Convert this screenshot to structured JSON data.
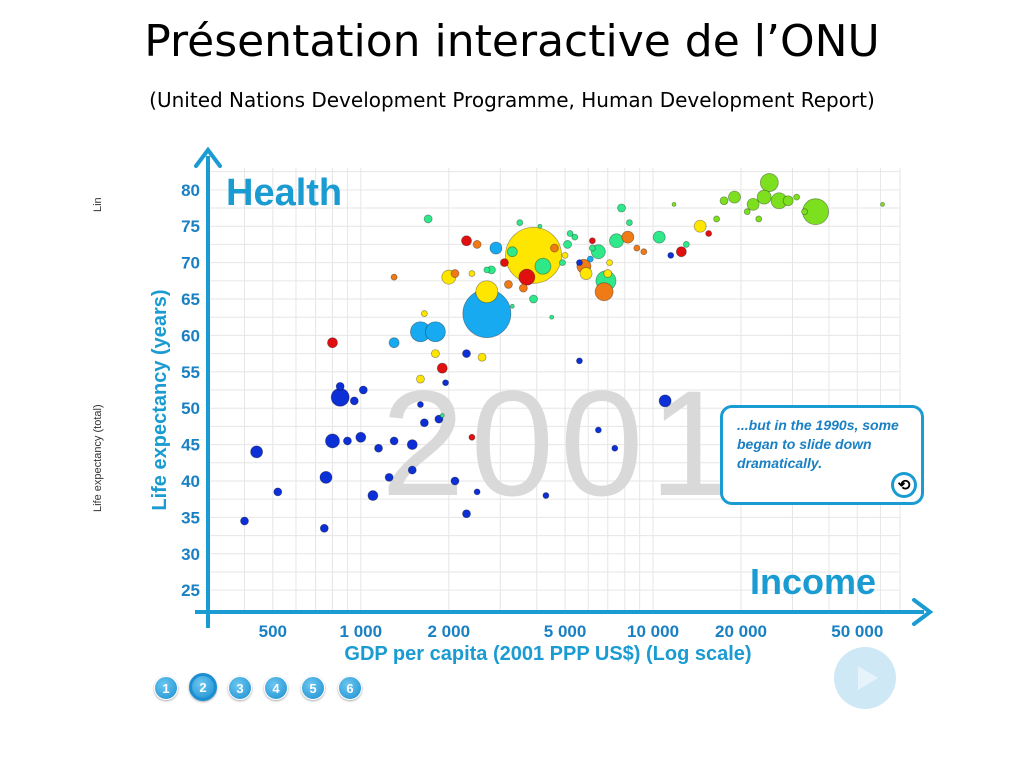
{
  "slide": {
    "title": "Présentation interactive de l’ONU",
    "subtitle": "(United Nations Development Programme, Human Development Report)"
  },
  "side_labels": {
    "scale": "Lin",
    "indicator": "Life expectancy (total)"
  },
  "callout": {
    "text": "...but in the 1990s, some began to slide down dramatically.",
    "replay_icon": "replay-icon"
  },
  "steps": [
    "1",
    "2",
    "3",
    "4",
    "5",
    "6"
  ],
  "active_step": "2",
  "play_icon": "play-icon",
  "colors": {
    "axis": "#1a9bd1",
    "tick": "#1a80c4",
    "grid": "#e6e6e6",
    "year_watermark": "#d9d9d9"
  },
  "chart_data": {
    "type": "scatter",
    "title": "Health",
    "corner_label": "Income",
    "year_label": "2001",
    "xlabel": "GDP per capita (2001 PPP US$) (Log scale)",
    "ylabel": "Life expectancy (years)",
    "x_scale": "log",
    "xlim": [
      300,
      70000
    ],
    "ylim": [
      22,
      83
    ],
    "x_ticks": [
      500,
      1000,
      2000,
      5000,
      10000,
      20000,
      50000
    ],
    "x_tick_labels": [
      "500",
      "1 000",
      "2 000",
      "5 000",
      "10 000",
      "20 000",
      "50 000"
    ],
    "y_ticks": [
      25,
      30,
      35,
      40,
      45,
      50,
      55,
      60,
      65,
      70,
      75,
      80
    ],
    "grid": true,
    "legend": "none",
    "points": [
      {
        "x": 3900,
        "y": 71,
        "s": 28,
        "c": "#ffe600"
      },
      {
        "x": 2700,
        "y": 63,
        "s": 24,
        "c": "#18aaf0"
      },
      {
        "x": 36000,
        "y": 77,
        "s": 13,
        "c": "#7ce01f"
      },
      {
        "x": 2700,
        "y": 66,
        "s": 11,
        "c": "#ffe600"
      },
      {
        "x": 1600,
        "y": 60.5,
        "s": 10,
        "c": "#18aaf0"
      },
      {
        "x": 1800,
        "y": 60.5,
        "s": 10,
        "c": "#18aaf0"
      },
      {
        "x": 850,
        "y": 51.5,
        "s": 9,
        "c": "#0d2fd6"
      },
      {
        "x": 6900,
        "y": 67.5,
        "s": 10,
        "c": "#2ee88a"
      },
      {
        "x": 6800,
        "y": 66,
        "s": 9,
        "c": "#f07a16"
      },
      {
        "x": 25000,
        "y": 81,
        "s": 9,
        "c": "#7ce01f"
      },
      {
        "x": 24000,
        "y": 79,
        "s": 7,
        "c": "#7ce01f"
      },
      {
        "x": 27000,
        "y": 78.5,
        "s": 8,
        "c": "#7ce01f"
      },
      {
        "x": 22000,
        "y": 78,
        "s": 6,
        "c": "#7ce01f"
      },
      {
        "x": 29000,
        "y": 78.5,
        "s": 5,
        "c": "#7ce01f"
      },
      {
        "x": 19000,
        "y": 79,
        "s": 6,
        "c": "#7ce01f"
      },
      {
        "x": 3700,
        "y": 68,
        "s": 8,
        "c": "#e01010"
      },
      {
        "x": 4200,
        "y": 69.5,
        "s": 8,
        "c": "#2ee88a"
      },
      {
        "x": 5800,
        "y": 69.5,
        "s": 7,
        "c": "#f07a16"
      },
      {
        "x": 5900,
        "y": 68.5,
        "s": 6,
        "c": "#ffe600"
      },
      {
        "x": 6500,
        "y": 71.5,
        "s": 7,
        "c": "#2ee88a"
      },
      {
        "x": 7500,
        "y": 73,
        "s": 7,
        "c": "#2ee88a"
      },
      {
        "x": 8200,
        "y": 73.5,
        "s": 6,
        "c": "#f07a16"
      },
      {
        "x": 10500,
        "y": 73.5,
        "s": 6,
        "c": "#2ee88a"
      },
      {
        "x": 12500,
        "y": 71.5,
        "s": 5,
        "c": "#e01010"
      },
      {
        "x": 14500,
        "y": 75,
        "s": 6,
        "c": "#ffe600"
      },
      {
        "x": 2000,
        "y": 68,
        "s": 7,
        "c": "#ffe600"
      },
      {
        "x": 760,
        "y": 40.5,
        "s": 6,
        "c": "#0d2fd6"
      },
      {
        "x": 440,
        "y": 44,
        "s": 6,
        "c": "#0d2fd6"
      },
      {
        "x": 800,
        "y": 45.5,
        "s": 7,
        "c": "#0d2fd6"
      },
      {
        "x": 1000,
        "y": 46,
        "s": 5,
        "c": "#0d2fd6"
      },
      {
        "x": 11000,
        "y": 51,
        "s": 6,
        "c": "#0d2fd6"
      },
      {
        "x": 2100,
        "y": 40,
        "s": 4,
        "c": "#0d2fd6"
      },
      {
        "x": 1500,
        "y": 45,
        "s": 5,
        "c": "#0d2fd6"
      },
      {
        "x": 1100,
        "y": 38,
        "s": 5,
        "c": "#0d2fd6"
      },
      {
        "x": 520,
        "y": 38.5,
        "s": 4,
        "c": "#0d2fd6"
      },
      {
        "x": 400,
        "y": 34.5,
        "s": 4,
        "c": "#0d2fd6"
      },
      {
        "x": 750,
        "y": 33.5,
        "s": 4,
        "c": "#0d2fd6"
      },
      {
        "x": 2300,
        "y": 35.5,
        "s": 4,
        "c": "#0d2fd6"
      },
      {
        "x": 1500,
        "y": 41.5,
        "s": 4,
        "c": "#0d2fd6"
      },
      {
        "x": 900,
        "y": 45.5,
        "s": 4,
        "c": "#0d2fd6"
      },
      {
        "x": 1300,
        "y": 45.5,
        "s": 4,
        "c": "#0d2fd6"
      },
      {
        "x": 1150,
        "y": 44.5,
        "s": 4,
        "c": "#0d2fd6"
      },
      {
        "x": 1650,
        "y": 48,
        "s": 4,
        "c": "#0d2fd6"
      },
      {
        "x": 950,
        "y": 51,
        "s": 4,
        "c": "#0d2fd6"
      },
      {
        "x": 1020,
        "y": 52.5,
        "s": 4,
        "c": "#0d2fd6"
      },
      {
        "x": 850,
        "y": 53,
        "s": 4,
        "c": "#0d2fd6"
      },
      {
        "x": 2300,
        "y": 57.5,
        "s": 4,
        "c": "#0d2fd6"
      },
      {
        "x": 1250,
        "y": 40.5,
        "s": 4,
        "c": "#0d2fd6"
      },
      {
        "x": 1850,
        "y": 48.5,
        "s": 4,
        "c": "#0d2fd6"
      },
      {
        "x": 1950,
        "y": 53.5,
        "s": 3,
        "c": "#0d2fd6"
      },
      {
        "x": 1600,
        "y": 50.5,
        "s": 3,
        "c": "#0d2fd6"
      },
      {
        "x": 2500,
        "y": 38.5,
        "s": 3,
        "c": "#0d2fd6"
      },
      {
        "x": 5600,
        "y": 56.5,
        "s": 3,
        "c": "#0d2fd6"
      },
      {
        "x": 6500,
        "y": 47,
        "s": 3,
        "c": "#0d2fd6"
      },
      {
        "x": 7400,
        "y": 44.5,
        "s": 3,
        "c": "#0d2fd6"
      },
      {
        "x": 4300,
        "y": 38,
        "s": 3,
        "c": "#0d2fd6"
      },
      {
        "x": 800,
        "y": 59,
        "s": 5,
        "c": "#e01010"
      },
      {
        "x": 1900,
        "y": 55.5,
        "s": 5,
        "c": "#e01010"
      },
      {
        "x": 2400,
        "y": 46,
        "s": 3,
        "c": "#e01010"
      },
      {
        "x": 1800,
        "y": 57.5,
        "s": 4,
        "c": "#ffe600"
      },
      {
        "x": 1300,
        "y": 59,
        "s": 5,
        "c": "#18aaf0"
      },
      {
        "x": 1600,
        "y": 54,
        "s": 4,
        "c": "#ffe600"
      },
      {
        "x": 1650,
        "y": 63,
        "s": 3,
        "c": "#ffe600"
      },
      {
        "x": 2600,
        "y": 57,
        "s": 4,
        "c": "#ffe600"
      },
      {
        "x": 1700,
        "y": 76,
        "s": 4,
        "c": "#2ee88a"
      },
      {
        "x": 2300,
        "y": 73,
        "s": 5,
        "c": "#e01010"
      },
      {
        "x": 2500,
        "y": 72.5,
        "s": 4,
        "c": "#f07a16"
      },
      {
        "x": 2900,
        "y": 72,
        "s": 6,
        "c": "#18aaf0"
      },
      {
        "x": 3300,
        "y": 71.5,
        "s": 5,
        "c": "#2ee88a"
      },
      {
        "x": 3600,
        "y": 66.5,
        "s": 4,
        "c": "#f07a16"
      },
      {
        "x": 3900,
        "y": 65,
        "s": 4,
        "c": "#2ee88a"
      },
      {
        "x": 3100,
        "y": 70,
        "s": 4,
        "c": "#e01010"
      },
      {
        "x": 3200,
        "y": 67,
        "s": 4,
        "c": "#f07a16"
      },
      {
        "x": 2800,
        "y": 69,
        "s": 4,
        "c": "#2ee88a"
      },
      {
        "x": 1300,
        "y": 68,
        "s": 3,
        "c": "#f07a16"
      },
      {
        "x": 2100,
        "y": 68.5,
        "s": 4,
        "c": "#f07a16"
      },
      {
        "x": 2400,
        "y": 68.5,
        "s": 3,
        "c": "#ffe600"
      },
      {
        "x": 2700,
        "y": 69,
        "s": 3,
        "c": "#2ee88a"
      },
      {
        "x": 4600,
        "y": 72,
        "s": 4,
        "c": "#f07a16"
      },
      {
        "x": 5100,
        "y": 72.5,
        "s": 4,
        "c": "#2ee88a"
      },
      {
        "x": 5400,
        "y": 73.5,
        "s": 3,
        "c": "#2ee88a"
      },
      {
        "x": 5000,
        "y": 71,
        "s": 3,
        "c": "#ffe600"
      },
      {
        "x": 5600,
        "y": 70,
        "s": 3,
        "c": "#0d2fd6"
      },
      {
        "x": 6200,
        "y": 73,
        "s": 3,
        "c": "#e01010"
      },
      {
        "x": 4900,
        "y": 70,
        "s": 3,
        "c": "#2ee88a"
      },
      {
        "x": 6100,
        "y": 70.5,
        "s": 3,
        "c": "#18aaf0"
      },
      {
        "x": 7000,
        "y": 68.5,
        "s": 4,
        "c": "#ffe600"
      },
      {
        "x": 7100,
        "y": 70,
        "s": 3,
        "c": "#ffe600"
      },
      {
        "x": 8800,
        "y": 72,
        "s": 3,
        "c": "#f07a16"
      },
      {
        "x": 9300,
        "y": 71.5,
        "s": 3,
        "c": "#f07a16"
      },
      {
        "x": 8300,
        "y": 75.5,
        "s": 3,
        "c": "#2ee88a"
      },
      {
        "x": 7800,
        "y": 77.5,
        "s": 4,
        "c": "#2ee88a"
      },
      {
        "x": 11500,
        "y": 71,
        "s": 3,
        "c": "#0d2fd6"
      },
      {
        "x": 13000,
        "y": 72.5,
        "s": 3,
        "c": "#2ee88a"
      },
      {
        "x": 15500,
        "y": 74,
        "s": 3,
        "c": "#e01010"
      },
      {
        "x": 16500,
        "y": 76,
        "s": 3,
        "c": "#7ce01f"
      },
      {
        "x": 17500,
        "y": 78.5,
        "s": 4,
        "c": "#7ce01f"
      },
      {
        "x": 21000,
        "y": 77,
        "s": 3,
        "c": "#7ce01f"
      },
      {
        "x": 23000,
        "y": 76,
        "s": 3,
        "c": "#7ce01f"
      },
      {
        "x": 31000,
        "y": 79,
        "s": 3,
        "c": "#7ce01f"
      },
      {
        "x": 33000,
        "y": 77,
        "s": 3,
        "c": "#7ce01f"
      },
      {
        "x": 61000,
        "y": 78,
        "s": 2,
        "c": "#7ce01f"
      },
      {
        "x": 11800,
        "y": 78,
        "s": 2,
        "c": "#7ce01f"
      },
      {
        "x": 4100,
        "y": 75,
        "s": 2,
        "c": "#2ee88a"
      },
      {
        "x": 3500,
        "y": 75.5,
        "s": 3,
        "c": "#2ee88a"
      },
      {
        "x": 4500,
        "y": 62.5,
        "s": 2,
        "c": "#2ee88a"
      },
      {
        "x": 1900,
        "y": 49,
        "s": 2,
        "c": "#2ee88a"
      },
      {
        "x": 3300,
        "y": 64,
        "s": 2,
        "c": "#2ee88a"
      },
      {
        "x": 5200,
        "y": 74,
        "s": 3,
        "c": "#2ee88a"
      },
      {
        "x": 6200,
        "y": 72,
        "s": 3,
        "c": "#2ee88a"
      }
    ]
  }
}
